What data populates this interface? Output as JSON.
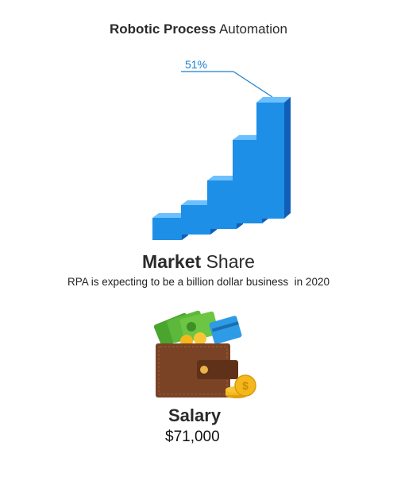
{
  "header": {
    "title_bold": "Robotic Process",
    "title_rest": "Automation"
  },
  "chart": {
    "label": "51%"
  },
  "market": {
    "title_bold": "Market",
    "title_rest": "Share",
    "subtitle": "RPA is expecting to be a billion dollar business  in 2020"
  },
  "salary": {
    "label": "Salary",
    "value": "$71,000"
  },
  "colors": {
    "bar_front": "#1e8fe6",
    "bar_side": "#0f5fb8",
    "bar_top": "#6cc0ff",
    "leader_line": "#1a7fd0",
    "wallet": "#7a4326",
    "money": "#5cb83a",
    "coin": "#f5b81c"
  }
}
